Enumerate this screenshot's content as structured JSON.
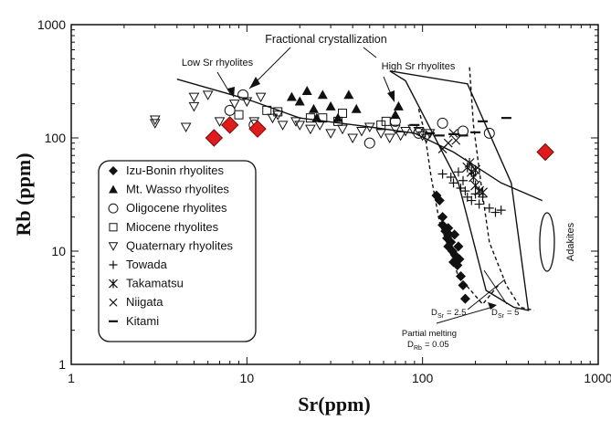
{
  "chart_data": {
    "type": "scatter",
    "xlabel": "Sr(ppm)",
    "ylabel": "Rb (ppm)",
    "xscale": "log",
    "yscale": "log",
    "xlim": [
      1,
      1000
    ],
    "ylim": [
      1,
      1000
    ],
    "x_ticks": [
      1,
      10,
      100,
      1000
    ],
    "y_ticks": [
      1,
      10,
      100,
      1000
    ],
    "x_tick_labels": [
      "1",
      "10",
      "100",
      "1000"
    ],
    "y_tick_labels": [
      "1",
      "10",
      "100",
      "1000"
    ],
    "grid": false,
    "legend_position": "bottom-left",
    "series": [
      {
        "name": "Izu-Bonin rhyolites",
        "marker": "diamond-filled",
        "points": [
          [
            120,
            31
          ],
          [
            125,
            28
          ],
          [
            130,
            20
          ],
          [
            135,
            15
          ],
          [
            138,
            13
          ],
          [
            140,
            11
          ],
          [
            142,
            14
          ],
          [
            145,
            12
          ],
          [
            148,
            10
          ],
          [
            150,
            8
          ],
          [
            152,
            14
          ],
          [
            155,
            9
          ],
          [
            158,
            7.5
          ],
          [
            160,
            11
          ],
          [
            162,
            8.5
          ],
          [
            165,
            6
          ],
          [
            170,
            5
          ],
          [
            175,
            3.8
          ],
          [
            130,
            17
          ],
          [
            140,
            16
          ]
        ]
      },
      {
        "name": "Mt. Wasso rhyolites",
        "marker": "triangle-filled",
        "points": [
          [
            18,
            230
          ],
          [
            20,
            210
          ],
          [
            22,
            260
          ],
          [
            24,
            180
          ],
          [
            25,
            150
          ],
          [
            27,
            240
          ],
          [
            30,
            190
          ],
          [
            33,
            150
          ],
          [
            38,
            240
          ],
          [
            42,
            180
          ],
          [
            70,
            160
          ],
          [
            73,
            190
          ]
        ]
      },
      {
        "name": "Oligocene rhyolites",
        "marker": "circle-open",
        "points": [
          [
            8,
            175
          ],
          [
            9.5,
            240
          ],
          [
            11,
            130
          ],
          [
            50,
            90
          ],
          [
            70,
            140
          ],
          [
            95,
            110
          ],
          [
            130,
            135
          ],
          [
            170,
            115
          ],
          [
            240,
            110
          ]
        ]
      },
      {
        "name": "Miocene rhyolites",
        "marker": "square-open",
        "points": [
          [
            9,
            160
          ],
          [
            13,
            175
          ],
          [
            15,
            170
          ],
          [
            23,
            150
          ],
          [
            27,
            150
          ],
          [
            33,
            140
          ],
          [
            35,
            165
          ],
          [
            58,
            130
          ],
          [
            62,
            140
          ]
        ]
      },
      {
        "name": "Quaternary rhyolites",
        "marker": "triangle-down-open",
        "points": [
          [
            3,
            145
          ],
          [
            3,
            135
          ],
          [
            4.5,
            125
          ],
          [
            5,
            190
          ],
          [
            5,
            230
          ],
          [
            6,
            240
          ],
          [
            7,
            140
          ],
          [
            8.5,
            200
          ],
          [
            10,
            210
          ],
          [
            11,
            140
          ],
          [
            12,
            230
          ],
          [
            14,
            150
          ],
          [
            15,
            160
          ],
          [
            16,
            130
          ],
          [
            19,
            140
          ],
          [
            20,
            130
          ],
          [
            23,
            120
          ],
          [
            26,
            130
          ],
          [
            30,
            110
          ],
          [
            35,
            120
          ],
          [
            40,
            100
          ],
          [
            45,
            115
          ],
          [
            50,
            125
          ],
          [
            58,
            110
          ],
          [
            65,
            100
          ],
          [
            70,
            120
          ],
          [
            75,
            105
          ],
          [
            80,
            115
          ],
          [
            88,
            120
          ],
          [
            95,
            115
          ],
          [
            100,
            105
          ],
          [
            105,
            100
          ],
          [
            110,
            110
          ]
        ]
      },
      {
        "name": "Towada",
        "marker": "plus",
        "points": [
          [
            130,
            48
          ],
          [
            145,
            45
          ],
          [
            150,
            40
          ],
          [
            160,
            50
          ],
          [
            165,
            36
          ],
          [
            170,
            42
          ],
          [
            175,
            34
          ],
          [
            180,
            30
          ],
          [
            190,
            28
          ],
          [
            200,
            32
          ],
          [
            210,
            26
          ],
          [
            220,
            30
          ],
          [
            240,
            24
          ],
          [
            260,
            22
          ],
          [
            280,
            23
          ]
        ]
      },
      {
        "name": "Takamatsu",
        "marker": "asterisk",
        "points": [
          [
            180,
            55
          ],
          [
            185,
            60
          ],
          [
            190,
            50
          ],
          [
            195,
            45
          ],
          [
            200,
            52
          ],
          [
            200,
            38
          ],
          [
            210,
            34
          ],
          [
            220,
            33
          ]
        ]
      },
      {
        "name": "Niigata",
        "marker": "x",
        "points": [
          [
            130,
            80
          ],
          [
            140,
            90
          ],
          [
            150,
            110
          ],
          [
            155,
            95
          ]
        ]
      },
      {
        "name": "Kitami",
        "marker": "dash",
        "points": [
          [
            90,
            130
          ],
          [
            110,
            110
          ],
          [
            125,
            105
          ],
          [
            150,
            108
          ],
          [
            170,
            105
          ],
          [
            200,
            112
          ],
          [
            220,
            140
          ],
          [
            300,
            150
          ]
        ]
      },
      {
        "name": "",
        "marker": "red-diamond",
        "points": [
          [
            6.5,
            100
          ],
          [
            8,
            130
          ],
          [
            11.5,
            120
          ],
          [
            500,
            75
          ]
        ]
      }
    ],
    "lines": [
      {
        "id": "low-sr-trend",
        "style": "solid",
        "points": [
          [
            4,
            330
          ],
          [
            10,
            220
          ],
          [
            20,
            150
          ],
          [
            50,
            125
          ],
          [
            90,
            110
          ],
          [
            150,
            75
          ],
          [
            280,
            40
          ],
          [
            480,
            28
          ]
        ]
      },
      {
        "id": "high-sr-envelope",
        "style": "solid",
        "points": [
          [
            65,
            390
          ],
          [
            180,
            300
          ],
          [
            320,
            40
          ],
          [
            400,
            3
          ],
          [
            330,
            3.2
          ],
          [
            230,
            4.5
          ],
          [
            160,
            40
          ],
          [
            80,
            320
          ],
          [
            65,
            390
          ]
        ]
      },
      {
        "id": "melting-dsr-2.5",
        "style": "dashed",
        "points": [
          [
            95,
            180
          ],
          [
            103,
            110
          ],
          [
            112,
            45
          ],
          [
            125,
            18
          ],
          [
            160,
            6
          ],
          [
            220,
            3.4
          ],
          [
            270,
            5
          ]
        ]
      },
      {
        "id": "melting-dsr-5",
        "style": "dashed",
        "points": [
          [
            185,
            420
          ],
          [
            195,
            130
          ],
          [
            215,
            40
          ],
          [
            240,
            12
          ],
          [
            300,
            5
          ],
          [
            360,
            3.2
          ],
          [
            430,
            3
          ]
        ]
      }
    ],
    "annotations": {
      "fractional": "Fractional crystallization",
      "low_sr": "Low Sr rhyolites",
      "high_sr": "High Sr rhyolites",
      "adakites": "Adakites",
      "dsr_25": "D = 2.5",
      "dsr_25_sub": "Sr",
      "dsr_5": "D = 5",
      "dsr_5_sub": "Sr",
      "partial_melting": "Partial melting",
      "drb": "D = 0.05",
      "drb_sub": "Rb"
    }
  }
}
